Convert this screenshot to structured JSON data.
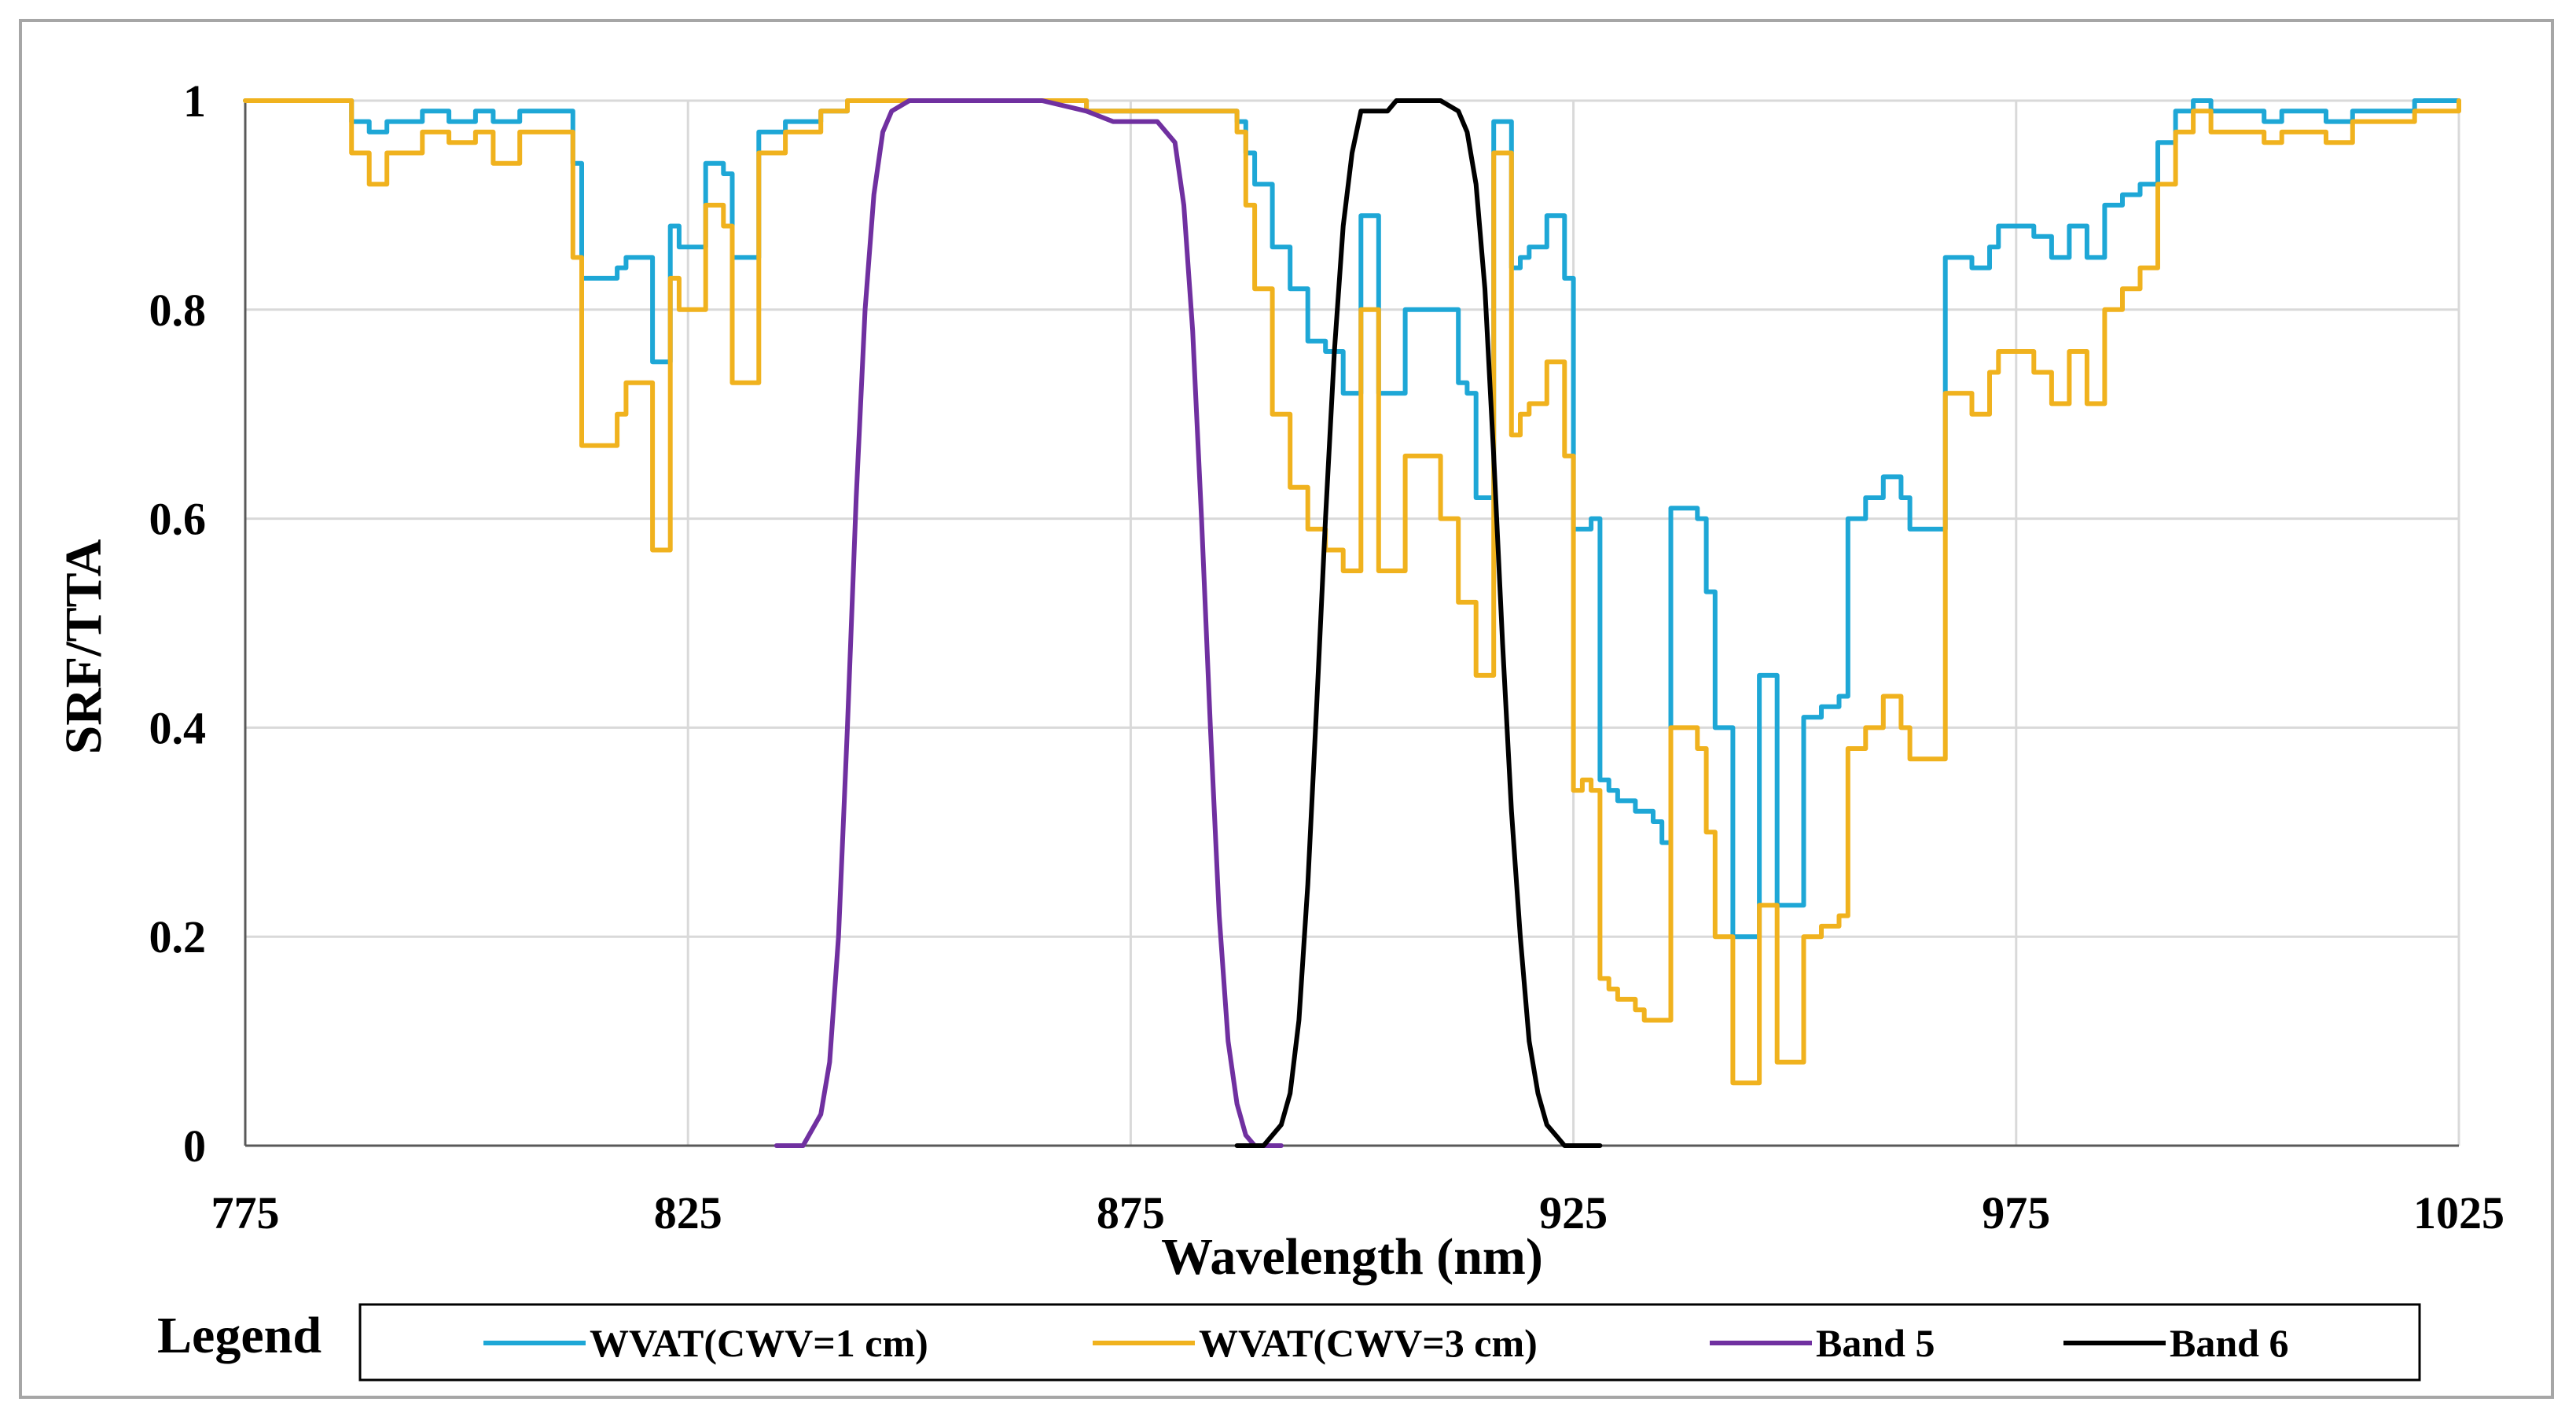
{
  "chart_data": {
    "type": "line",
    "title": "",
    "xlabel": "Wavelength (nm)",
    "ylabel": "SRF/TTA",
    "xlim": [
      775,
      1025
    ],
    "ylim": [
      0,
      1
    ],
    "xticks": [
      775,
      825,
      875,
      925,
      975,
      1025
    ],
    "yticks": [
      0,
      0.2,
      0.4,
      0.6,
      0.8,
      1
    ],
    "ytick_labels": [
      "0",
      "0.2",
      "0.4",
      "0.6",
      "0.8",
      "1"
    ],
    "grid": true,
    "legend": {
      "title": "Legend",
      "placement": "bottom"
    },
    "series": [
      {
        "name": "WVAT(CWV=1 cm)",
        "color": "#1ea7d6",
        "x": [
          775,
          786,
          787,
          789,
          791,
          795,
          798,
          801,
          803,
          806,
          808,
          810,
          812,
          813,
          815,
          817,
          818,
          820,
          821,
          822,
          823,
          824,
          826,
          827,
          829,
          830,
          831,
          833,
          834,
          836,
          838,
          840,
          843,
          846,
          850,
          855,
          860,
          865,
          870,
          875,
          880,
          883,
          884,
          885,
          886,
          887,
          888,
          889,
          890,
          891,
          893,
          895,
          897,
          899,
          901,
          902,
          903,
          905,
          906,
          908,
          910,
          912,
          913,
          914,
          916,
          917,
          918,
          919,
          920,
          921,
          922,
          923,
          924,
          925,
          926,
          927,
          928,
          929,
          930,
          931,
          932,
          933,
          934,
          935,
          936,
          937,
          938,
          939,
          940,
          941,
          942,
          943,
          944,
          945,
          946,
          947,
          948,
          949,
          950,
          951,
          952,
          953,
          954,
          955,
          956,
          958,
          960,
          962,
          963,
          965,
          967,
          968,
          970,
          972,
          973,
          975,
          977,
          979,
          981,
          983,
          985,
          987,
          989,
          991,
          993,
          995,
          997,
          999,
          1001,
          1003,
          1005,
          1007,
          1010,
          1013,
          1016,
          1020,
          1025
        ],
        "y": [
          1,
          1,
          0.98,
          0.97,
          0.98,
          0.99,
          0.98,
          0.99,
          0.98,
          0.99,
          0.99,
          0.99,
          0.94,
          0.83,
          0.83,
          0.84,
          0.85,
          0.85,
          0.75,
          0.75,
          0.88,
          0.86,
          0.86,
          0.94,
          0.93,
          0.85,
          0.85,
          0.97,
          0.97,
          0.98,
          0.98,
          0.99,
          1,
          1,
          1,
          1,
          1,
          1,
          0.99,
          0.99,
          0.99,
          0.99,
          0.99,
          0.99,
          0.99,
          0.98,
          0.95,
          0.92,
          0.92,
          0.86,
          0.82,
          0.77,
          0.76,
          0.72,
          0.89,
          0.89,
          0.72,
          0.72,
          0.8,
          0.8,
          0.8,
          0.73,
          0.72,
          0.62,
          0.98,
          0.98,
          0.84,
          0.85,
          0.86,
          0.86,
          0.89,
          0.89,
          0.83,
          0.59,
          0.59,
          0.6,
          0.35,
          0.34,
          0.33,
          0.33,
          0.32,
          0.32,
          0.31,
          0.29,
          0.61,
          0.61,
          0.61,
          0.6,
          0.53,
          0.4,
          0.4,
          0.2,
          0.2,
          0.2,
          0.45,
          0.45,
          0.23,
          0.23,
          0.23,
          0.41,
          0.41,
          0.42,
          0.42,
          0.43,
          0.6,
          0.62,
          0.64,
          0.62,
          0.59,
          0.59,
          0.85,
          0.85,
          0.84,
          0.86,
          0.88,
          0.88,
          0.87,
          0.85,
          0.88,
          0.85,
          0.9,
          0.91,
          0.92,
          0.96,
          0.99,
          1,
          0.99,
          0.99,
          0.99,
          0.98,
          0.99,
          0.99,
          0.98,
          0.99,
          0.99,
          1,
          1
        ]
      },
      {
        "name": "WVAT(CWV=3 cm)",
        "color": "#f0b21e",
        "x": [
          775,
          786,
          787,
          789,
          791,
          795,
          798,
          801,
          803,
          806,
          808,
          810,
          812,
          813,
          815,
          817,
          818,
          820,
          821,
          822,
          823,
          824,
          826,
          827,
          829,
          830,
          831,
          833,
          834,
          836,
          838,
          840,
          843,
          846,
          850,
          855,
          860,
          865,
          870,
          875,
          880,
          883,
          884,
          885,
          886,
          887,
          888,
          889,
          890,
          891,
          893,
          895,
          897,
          899,
          901,
          902,
          903,
          905,
          906,
          908,
          910,
          912,
          913,
          914,
          916,
          917,
          918,
          919,
          920,
          921,
          922,
          923,
          924,
          925,
          926,
          927,
          928,
          929,
          930,
          931,
          932,
          933,
          934,
          935,
          936,
          937,
          938,
          939,
          940,
          941,
          942,
          943,
          944,
          945,
          946,
          947,
          948,
          949,
          950,
          951,
          952,
          953,
          954,
          955,
          956,
          958,
          960,
          962,
          963,
          965,
          967,
          968,
          970,
          972,
          973,
          975,
          977,
          979,
          981,
          983,
          985,
          987,
          989,
          991,
          993,
          995,
          997,
          999,
          1001,
          1003,
          1005,
          1007,
          1010,
          1013,
          1016,
          1020,
          1025
        ],
        "y": [
          1,
          1,
          0.95,
          0.92,
          0.95,
          0.97,
          0.96,
          0.97,
          0.94,
          0.97,
          0.97,
          0.97,
          0.85,
          0.67,
          0.67,
          0.7,
          0.73,
          0.73,
          0.57,
          0.57,
          0.83,
          0.8,
          0.8,
          0.9,
          0.88,
          0.73,
          0.73,
          0.95,
          0.95,
          0.97,
          0.97,
          0.99,
          1,
          1,
          1,
          1,
          1,
          1,
          0.99,
          0.99,
          0.99,
          0.99,
          0.99,
          0.99,
          0.99,
          0.97,
          0.9,
          0.82,
          0.82,
          0.7,
          0.63,
          0.59,
          0.57,
          0.55,
          0.8,
          0.8,
          0.55,
          0.55,
          0.66,
          0.66,
          0.6,
          0.52,
          0.52,
          0.45,
          0.95,
          0.95,
          0.68,
          0.7,
          0.71,
          0.71,
          0.75,
          0.75,
          0.66,
          0.34,
          0.35,
          0.34,
          0.16,
          0.15,
          0.14,
          0.14,
          0.13,
          0.12,
          0.12,
          0.12,
          0.4,
          0.4,
          0.4,
          0.38,
          0.3,
          0.2,
          0.2,
          0.06,
          0.06,
          0.06,
          0.23,
          0.23,
          0.08,
          0.08,
          0.08,
          0.2,
          0.2,
          0.21,
          0.21,
          0.22,
          0.38,
          0.4,
          0.43,
          0.4,
          0.37,
          0.37,
          0.72,
          0.72,
          0.7,
          0.74,
          0.76,
          0.76,
          0.74,
          0.71,
          0.76,
          0.71,
          0.8,
          0.82,
          0.84,
          0.92,
          0.97,
          0.99,
          0.97,
          0.97,
          0.97,
          0.96,
          0.97,
          0.97,
          0.96,
          0.98,
          0.98,
          0.99,
          1
        ]
      },
      {
        "name": "Band 5",
        "color": "#7030a0",
        "x": [
          835,
          838,
          840,
          841,
          842,
          843,
          844,
          845,
          846,
          847,
          848,
          850,
          855,
          860,
          865,
          870,
          873,
          875,
          878,
          880,
          881,
          882,
          883,
          884,
          885,
          886,
          887,
          888,
          889,
          890,
          892
        ],
        "y": [
          0,
          0,
          0.03,
          0.08,
          0.2,
          0.4,
          0.62,
          0.8,
          0.91,
          0.97,
          0.99,
          1,
          1,
          1,
          1,
          0.99,
          0.98,
          0.98,
          0.98,
          0.96,
          0.9,
          0.78,
          0.6,
          0.4,
          0.22,
          0.1,
          0.04,
          0.01,
          0,
          0,
          0
        ]
      },
      {
        "name": "Band 6",
        "color": "#000000",
        "x": [
          887,
          890,
          892,
          893,
          894,
          895,
          896,
          897,
          898,
          899,
          900,
          901,
          902,
          903,
          904,
          905,
          906,
          908,
          910,
          912,
          913,
          914,
          915,
          916,
          917,
          918,
          919,
          920,
          921,
          922,
          923,
          924,
          925,
          928
        ],
        "y": [
          0,
          0,
          0.02,
          0.05,
          0.12,
          0.25,
          0.42,
          0.6,
          0.76,
          0.88,
          0.95,
          0.99,
          0.99,
          0.99,
          0.99,
          1,
          1,
          1,
          1,
          0.99,
          0.97,
          0.92,
          0.82,
          0.66,
          0.48,
          0.32,
          0.2,
          0.1,
          0.05,
          0.02,
          0.01,
          0,
          0,
          0
        ]
      }
    ]
  }
}
